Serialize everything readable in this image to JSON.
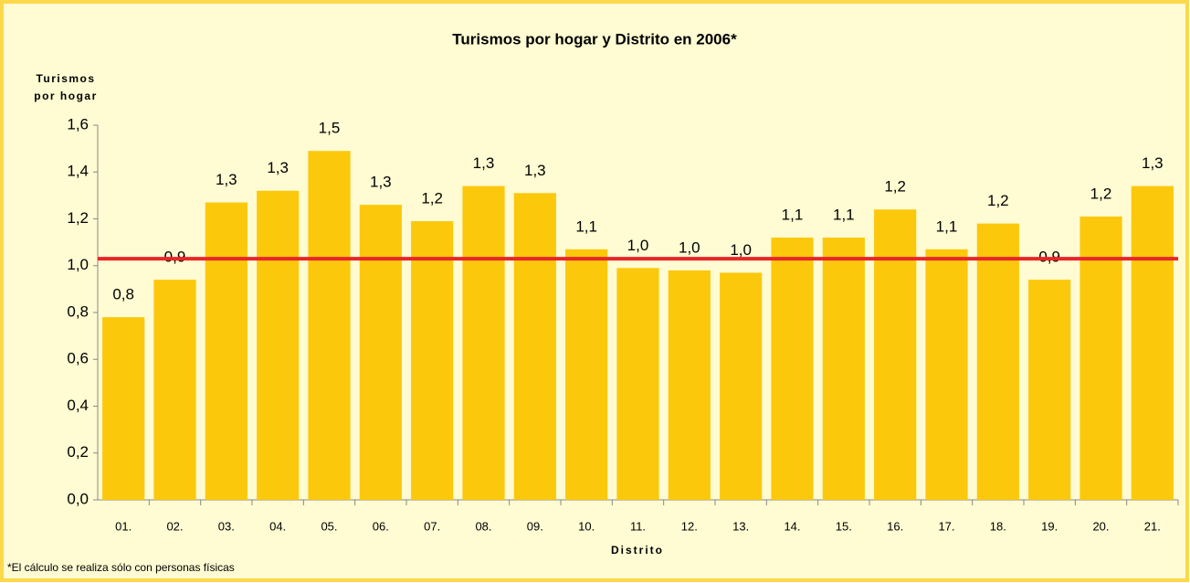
{
  "chart_data": {
    "type": "bar",
    "title": "Turismos por hogar y Distrito en 2006*",
    "y_label": [
      "Turismos",
      "por hogar"
    ],
    "x_label": "Distrito",
    "footnote": "*El cálculo se realiza sólo con personas físicas",
    "categories": [
      "01.",
      "02.",
      "03.",
      "04.",
      "05.",
      "06.",
      "07.",
      "08.",
      "09.",
      "10.",
      "11.",
      "12.",
      "13.",
      "14.",
      "15.",
      "16.",
      "17.",
      "18.",
      "19.",
      "20.",
      "21."
    ],
    "values": [
      0.78,
      0.94,
      1.27,
      1.32,
      1.49,
      1.26,
      1.19,
      1.34,
      1.31,
      1.07,
      0.99,
      0.98,
      0.97,
      1.12,
      1.12,
      1.24,
      1.07,
      1.18,
      0.94,
      1.21,
      1.34
    ],
    "value_labels": [
      "0,8",
      "0,9",
      "1,3",
      "1,3",
      "1,5",
      "1,3",
      "1,2",
      "1,3",
      "1,3",
      "1,1",
      "1,0",
      "1,0",
      "1,0",
      "1,1",
      "1,1",
      "1,2",
      "1,1",
      "1,2",
      "0,9",
      "1,2",
      "1,3"
    ],
    "color": "#fcc80c",
    "reference_line": {
      "value": 1.03,
      "color": "#e8262a"
    },
    "ylim": [
      0,
      1.6
    ],
    "yticks": [
      {
        "value": 0,
        "label": "0,0"
      },
      {
        "value": 0.2,
        "label": "0,2"
      },
      {
        "value": 0.4,
        "label": "0,4"
      },
      {
        "value": 0.6,
        "label": "0,6"
      },
      {
        "value": 0.8,
        "label": "0,8"
      },
      {
        "value": 1.0,
        "label": "1,0"
      },
      {
        "value": 1.2,
        "label": "1,2"
      },
      {
        "value": 1.4,
        "label": "1,4"
      },
      {
        "value": 1.6,
        "label": "1,6"
      }
    ],
    "grid": false
  }
}
